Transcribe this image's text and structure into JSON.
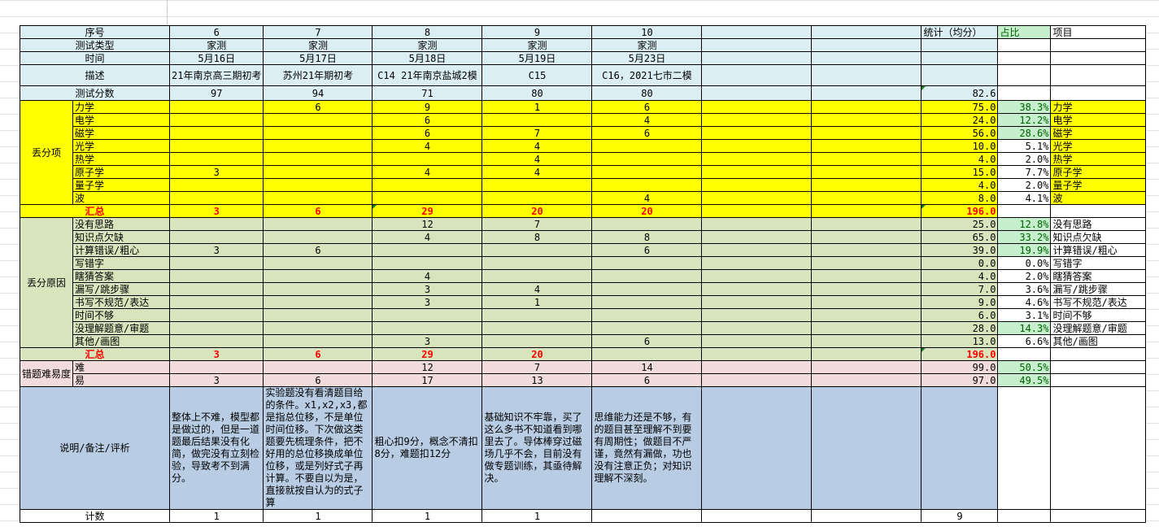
{
  "colors": {
    "header": "#DAEEF3",
    "lost_items": "#FFFF00",
    "reasons": "#D8E4BC",
    "difficulty": "#F2DCDB",
    "notes": "#B8CCE4",
    "highlight": "#C6EFCE",
    "highlight_text": "#006100",
    "total_text": "#FF0000"
  },
  "header": {
    "stat_label": "统计（均分）",
    "ratio_label": "占比",
    "item_label": "项目",
    "rows": [
      {
        "label": "序号",
        "values": [
          "6",
          "7",
          "8",
          "9",
          "10"
        ]
      },
      {
        "label": "测试类型",
        "values": [
          "家测",
          "家测",
          "家测",
          "家测",
          "家测"
        ]
      },
      {
        "label": "时间",
        "values": [
          "5月16日",
          "5月17日",
          "5月18日",
          "5月19日",
          "5月23日"
        ]
      },
      {
        "label": "描述",
        "values": [
          "21年南京高三期初考",
          "苏州21年期初考",
          "C14 21年南京盐城2模",
          "C15",
          "C16，2021七市二模"
        ]
      },
      {
        "label": "测试分数",
        "values": [
          "97",
          "94",
          "71",
          "80",
          "80"
        ],
        "stat": "82.6"
      }
    ]
  },
  "lost_items": {
    "label": "丢分项",
    "items": [
      {
        "label": "力学",
        "values": [
          "",
          "6",
          "9",
          "1",
          "6"
        ],
        "stat": "75.0",
        "ratio": "38.3%",
        "highlight": true,
        "item": "力学"
      },
      {
        "label": "电学",
        "values": [
          "",
          "",
          "6",
          "",
          "4"
        ],
        "stat": "24.0",
        "ratio": "12.2%",
        "highlight": true,
        "item": "电学"
      },
      {
        "label": "磁学",
        "values": [
          "",
          "",
          "6",
          "7",
          "6"
        ],
        "stat": "56.0",
        "ratio": "28.6%",
        "highlight": true,
        "item": "磁学"
      },
      {
        "label": "光学",
        "values": [
          "",
          "",
          "4",
          "4",
          ""
        ],
        "stat": "10.0",
        "ratio": "5.1%",
        "highlight": false,
        "item": "光学"
      },
      {
        "label": "热学",
        "values": [
          "",
          "",
          "",
          "4",
          ""
        ],
        "stat": "4.0",
        "ratio": "2.0%",
        "highlight": false,
        "item": "热学"
      },
      {
        "label": "原子学",
        "values": [
          "3",
          "",
          "4",
          "4",
          ""
        ],
        "stat": "15.0",
        "ratio": "7.7%",
        "highlight": false,
        "item": "原子学"
      },
      {
        "label": "量子学",
        "values": [
          "",
          "",
          "",
          "",
          ""
        ],
        "stat": "4.0",
        "ratio": "2.0%",
        "highlight": false,
        "item": "量子学"
      },
      {
        "label": "波",
        "values": [
          "",
          "",
          "",
          "",
          "4"
        ],
        "stat": "8.0",
        "ratio": "4.1%",
        "highlight": false,
        "item": "波"
      }
    ],
    "total": {
      "label": "汇总",
      "values": [
        "3",
        "6",
        "29",
        "20",
        "20"
      ],
      "stat": "196.0"
    }
  },
  "reasons": {
    "label": "丢分原因",
    "items": [
      {
        "label": "没有思路",
        "values": [
          "",
          "",
          "12",
          "7",
          ""
        ],
        "stat": "25.0",
        "ratio": "12.8%",
        "highlight": true,
        "item": "没有思路"
      },
      {
        "label": "知识点欠缺",
        "values": [
          "",
          "",
          "4",
          "8",
          "8"
        ],
        "stat": "65.0",
        "ratio": "33.2%",
        "highlight": true,
        "item": "知识点欠缺"
      },
      {
        "label": "计算错误/粗心",
        "values": [
          "3",
          "6",
          "",
          "",
          "6"
        ],
        "stat": "39.0",
        "ratio": "19.9%",
        "highlight": true,
        "item": "计算错误/粗心"
      },
      {
        "label": "写错字",
        "values": [
          "",
          "",
          "",
          "",
          ""
        ],
        "stat": "0.0",
        "ratio": "0.0%",
        "highlight": false,
        "item": "写错字"
      },
      {
        "label": "瞎猜答案",
        "values": [
          "",
          "",
          "4",
          "",
          ""
        ],
        "stat": "4.0",
        "ratio": "2.0%",
        "highlight": false,
        "item": "瞎猜答案"
      },
      {
        "label": "漏写/跳步骤",
        "values": [
          "",
          "",
          "3",
          "4",
          ""
        ],
        "stat": "7.0",
        "ratio": "3.6%",
        "highlight": false,
        "item": "漏写/跳步骤"
      },
      {
        "label": "书写不规范/表达",
        "values": [
          "",
          "",
          "3",
          "1",
          ""
        ],
        "stat": "9.0",
        "ratio": "4.6%",
        "highlight": false,
        "item": "书写不规范/表达"
      },
      {
        "label": "时间不够",
        "values": [
          "",
          "",
          "",
          "",
          ""
        ],
        "stat": "6.0",
        "ratio": "3.1%",
        "highlight": false,
        "item": "时间不够"
      },
      {
        "label": "没理解题意/审题",
        "values": [
          "",
          "",
          "",
          "",
          ""
        ],
        "stat": "28.0",
        "ratio": "14.3%",
        "highlight": true,
        "item": "没理解题意/审题"
      },
      {
        "label": "其他/画图",
        "values": [
          "",
          "",
          "3",
          "",
          "6"
        ],
        "stat": "13.0",
        "ratio": "6.6%",
        "highlight": false,
        "item": "其他/画图"
      }
    ],
    "total": {
      "label": "汇总",
      "values": [
        "3",
        "6",
        "29",
        "20",
        ""
      ],
      "stat": "196.0"
    }
  },
  "difficulty": {
    "label": "错题难易度",
    "items": [
      {
        "label": "难",
        "values": [
          "",
          "",
          "12",
          "7",
          "14"
        ],
        "stat": "99.0",
        "ratio": "50.5%",
        "highlight": true,
        "item": ""
      },
      {
        "label": "易",
        "values": [
          "3",
          "6",
          "17",
          "13",
          "6"
        ],
        "stat": "97.0",
        "ratio": "49.5%",
        "highlight": true,
        "item": ""
      }
    ]
  },
  "notes": {
    "label": "说明/备注/评析",
    "values": [
      "整体上不难，模型都是做过的，但是一道题最后结果没有化简，做完没有立刻检验，导致考不到满分。",
      "实验题没有看清题目给的条件。x1,x2,x3,都是指总位移，不是单位时间位移。下次做这类题要先梳理条件，把不好用的总位移换成单位位移，或是列好式子再计算。不要自以为是，直接就按自认为的式子算",
      "粗心扣9分，概念不清扣8分，难题扣12分",
      "基础知识不牢靠，买了这么多书不知道看到哪里去了。导体棒穿过磁场几乎不会，目前没有做专题训练，其亟待解决。",
      "思维能力还是不够，有的题目甚至理解不到要有周期性；做题目不严谨，竟然有漏做，功也没有注意正负；对知识理解不深刻。"
    ]
  },
  "count": {
    "label": "计数",
    "values": [
      "1",
      "1",
      "1",
      "1",
      ""
    ],
    "stat": "9"
  }
}
